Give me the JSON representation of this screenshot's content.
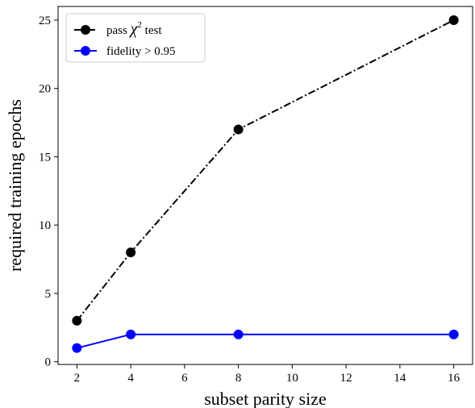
{
  "chart_data": {
    "type": "line",
    "title": "",
    "xlabel": "subset parity size",
    "ylabel": "required training epochs",
    "xlim": [
      1.3,
      16.7
    ],
    "ylim": [
      -0.2,
      26
    ],
    "xticks": [
      2,
      4,
      6,
      8,
      10,
      12,
      14,
      16
    ],
    "yticks": [
      0,
      5,
      10,
      15,
      20,
      25
    ],
    "grid": false,
    "legend_position": "top-left",
    "series": [
      {
        "name": "pass χ² test",
        "name_parts": {
          "prefix": "pass ",
          "symbol": "χ",
          "superscript": "2",
          "suffix": " test"
        },
        "x": [
          2,
          4,
          8,
          16
        ],
        "y": [
          3,
          8,
          17,
          25
        ],
        "color": "#000000",
        "line_style": "dash-dot",
        "marker": "circle"
      },
      {
        "name": "fidelity > 0.95",
        "x": [
          2,
          4,
          8,
          16
        ],
        "y": [
          1,
          2,
          2,
          2
        ],
        "color": "#0000ff",
        "line_style": "solid",
        "marker": "circle"
      }
    ]
  }
}
